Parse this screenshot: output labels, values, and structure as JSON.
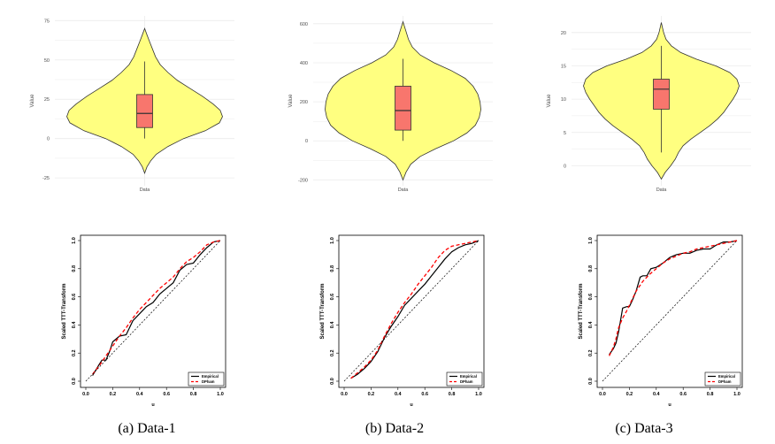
{
  "colors": {
    "violin_fill": "#FFFF80",
    "box_fill": "#F8766D",
    "grid": "#EBEBEB",
    "empirical": "#000000",
    "dpham": "#FF0000"
  },
  "chart_data": [
    {
      "type": "violin",
      "panel": "a",
      "caption": "(a) Data-1",
      "category": "Data",
      "ylabel": "Value",
      "ylim": [
        -30,
        78
      ],
      "yticks": [
        -25,
        0,
        25,
        50,
        75
      ],
      "ytick_labels": [
        "-25",
        "0",
        "25",
        "50",
        "75"
      ],
      "density_profile": [
        [
          -22,
          0.0
        ],
        [
          -18,
          0.03
        ],
        [
          -14,
          0.08
        ],
        [
          -10,
          0.15
        ],
        [
          -5,
          0.3
        ],
        [
          0,
          0.5
        ],
        [
          5,
          0.78
        ],
        [
          10,
          0.96
        ],
        [
          14,
          1.0
        ],
        [
          18,
          0.97
        ],
        [
          22,
          0.88
        ],
        [
          27,
          0.74
        ],
        [
          32,
          0.58
        ],
        [
          37,
          0.42
        ],
        [
          42,
          0.3
        ],
        [
          47,
          0.2
        ],
        [
          52,
          0.14
        ],
        [
          57,
          0.1
        ],
        [
          62,
          0.06
        ],
        [
          66,
          0.03
        ],
        [
          70,
          0.0
        ]
      ],
      "box": {
        "whisker_low": 0,
        "q1": 7,
        "median": 16,
        "q3": 28,
        "whisker_high": 49
      }
    },
    {
      "type": "violin",
      "panel": "b",
      "caption": "(b) Data-2",
      "category": "Data",
      "ylabel": "Value",
      "ylim": [
        -230,
        640
      ],
      "yticks": [
        -200,
        0,
        200,
        400,
        600
      ],
      "ytick_labels": [
        "-200",
        "0",
        "200",
        "400",
        "600"
      ],
      "density_profile": [
        [
          -200,
          0.0
        ],
        [
          -160,
          0.04
        ],
        [
          -120,
          0.1
        ],
        [
          -80,
          0.22
        ],
        [
          -40,
          0.42
        ],
        [
          0,
          0.65
        ],
        [
          40,
          0.82
        ],
        [
          80,
          0.93
        ],
        [
          120,
          0.98
        ],
        [
          160,
          1.0
        ],
        [
          200,
          0.99
        ],
        [
          240,
          0.96
        ],
        [
          280,
          0.9
        ],
        [
          320,
          0.8
        ],
        [
          360,
          0.62
        ],
        [
          400,
          0.4
        ],
        [
          440,
          0.22
        ],
        [
          480,
          0.12
        ],
        [
          520,
          0.07
        ],
        [
          560,
          0.04
        ],
        [
          610,
          0.0
        ]
      ],
      "box": {
        "whisker_low": 0,
        "q1": 55,
        "median": 155,
        "q3": 280,
        "whisker_high": 420
      }
    },
    {
      "type": "violin",
      "panel": "c",
      "caption": "(c) Data-3",
      "category": "Data",
      "ylabel": "Value",
      "ylim": [
        -3,
        22.5
      ],
      "yticks": [
        0,
        5,
        10,
        15,
        20
      ],
      "ytick_labels": [
        "0",
        "5",
        "10",
        "15",
        "20"
      ],
      "density_profile": [
        [
          -2,
          0.0
        ],
        [
          -1,
          0.05
        ],
        [
          0,
          0.12
        ],
        [
          1,
          0.18
        ],
        [
          2,
          0.22
        ],
        [
          3,
          0.28
        ],
        [
          4,
          0.38
        ],
        [
          5,
          0.5
        ],
        [
          6,
          0.62
        ],
        [
          7,
          0.72
        ],
        [
          8,
          0.8
        ],
        [
          9,
          0.86
        ],
        [
          10,
          0.92
        ],
        [
          11,
          0.97
        ],
        [
          12,
          1.0
        ],
        [
          13,
          0.97
        ],
        [
          14,
          0.88
        ],
        [
          15,
          0.7
        ],
        [
          16,
          0.45
        ],
        [
          17,
          0.25
        ],
        [
          18,
          0.13
        ],
        [
          19,
          0.06
        ],
        [
          20,
          0.03
        ],
        [
          21.5,
          0.0
        ]
      ],
      "box": {
        "whisker_low": 2,
        "q1": 8.5,
        "median": 11.5,
        "q3": 13,
        "whisker_high": 18
      }
    },
    {
      "type": "line",
      "panel": "a",
      "title": "",
      "xlabel": "u",
      "ylabel": "Scaled TTT-Transform",
      "xlim": [
        0,
        1
      ],
      "ylim": [
        0,
        1
      ],
      "xticks": [
        0,
        0.2,
        0.4,
        0.6,
        0.8,
        1
      ],
      "xtick_labels": [
        "0.0",
        "0.2",
        "0.4",
        "0.6",
        "0.8",
        "1.0"
      ],
      "yticks": [
        0,
        0.2,
        0.4,
        0.6,
        0.8,
        1
      ],
      "ytick_labels": [
        "0.0",
        "0.2",
        "0.4",
        "0.6",
        "0.8",
        "1.0"
      ],
      "legend": [
        "Empirical",
        "DPham"
      ],
      "legend_position": "bottom-right",
      "series": [
        {
          "name": "Empirical",
          "style": "solid",
          "x": [
            0.05,
            0.1,
            0.12,
            0.15,
            0.18,
            0.2,
            0.25,
            0.3,
            0.35,
            0.4,
            0.45,
            0.5,
            0.55,
            0.6,
            0.65,
            0.7,
            0.75,
            0.8,
            0.85,
            0.9,
            0.95,
            1.0
          ],
          "y": [
            0.04,
            0.12,
            0.15,
            0.15,
            0.22,
            0.28,
            0.32,
            0.33,
            0.43,
            0.48,
            0.53,
            0.56,
            0.62,
            0.66,
            0.7,
            0.79,
            0.83,
            0.84,
            0.9,
            0.95,
            0.99,
            1.0
          ]
        },
        {
          "name": "DPham",
          "style": "dashed",
          "x": [
            0.05,
            0.1,
            0.15,
            0.2,
            0.25,
            0.3,
            0.35,
            0.4,
            0.45,
            0.5,
            0.55,
            0.6,
            0.65,
            0.7,
            0.75,
            0.8,
            0.85,
            0.9,
            0.95,
            1.0
          ],
          "y": [
            0.05,
            0.11,
            0.18,
            0.25,
            0.32,
            0.38,
            0.45,
            0.51,
            0.56,
            0.61,
            0.66,
            0.7,
            0.74,
            0.8,
            0.85,
            0.88,
            0.92,
            0.97,
            0.99,
            1.0
          ]
        },
        {
          "name": "diagonal",
          "style": "dotted",
          "x": [
            0,
            1
          ],
          "y": [
            0,
            1
          ]
        }
      ]
    },
    {
      "type": "line",
      "panel": "b",
      "title": "",
      "xlabel": "u",
      "ylabel": "Scaled TTT-Transform",
      "xlim": [
        0,
        1
      ],
      "ylim": [
        0,
        1
      ],
      "xticks": [
        0,
        0.2,
        0.4,
        0.6,
        0.8,
        1
      ],
      "xtick_labels": [
        "0.0",
        "0.2",
        "0.4",
        "0.6",
        "0.8",
        "1.0"
      ],
      "yticks": [
        0,
        0.2,
        0.4,
        0.6,
        0.8,
        1
      ],
      "ytick_labels": [
        "0.0",
        "0.2",
        "0.4",
        "0.6",
        "0.8",
        "1.0"
      ],
      "legend": [
        "Empirical",
        "DPham"
      ],
      "legend_position": "bottom-right",
      "series": [
        {
          "name": "Empirical",
          "style": "solid",
          "x": [
            0.05,
            0.1,
            0.15,
            0.2,
            0.25,
            0.3,
            0.35,
            0.4,
            0.45,
            0.5,
            0.55,
            0.6,
            0.65,
            0.7,
            0.75,
            0.8,
            0.85,
            0.9,
            0.95,
            1.0
          ],
          "y": [
            0.02,
            0.05,
            0.09,
            0.14,
            0.21,
            0.31,
            0.39,
            0.46,
            0.54,
            0.59,
            0.64,
            0.69,
            0.75,
            0.81,
            0.87,
            0.92,
            0.95,
            0.97,
            0.98,
            1.0
          ]
        },
        {
          "name": "DPham",
          "style": "dashed",
          "x": [
            0.05,
            0.1,
            0.15,
            0.2,
            0.25,
            0.3,
            0.35,
            0.4,
            0.45,
            0.5,
            0.55,
            0.6,
            0.65,
            0.7,
            0.75,
            0.8,
            0.85,
            0.9,
            0.95,
            1.0
          ],
          "y": [
            0.02,
            0.06,
            0.1,
            0.15,
            0.22,
            0.32,
            0.41,
            0.49,
            0.56,
            0.62,
            0.69,
            0.75,
            0.81,
            0.88,
            0.93,
            0.96,
            0.97,
            0.98,
            0.99,
            1.0
          ]
        },
        {
          "name": "diagonal",
          "style": "dotted",
          "x": [
            0,
            1
          ],
          "y": [
            0,
            1
          ]
        }
      ]
    },
    {
      "type": "line",
      "panel": "c",
      "title": "",
      "xlabel": "u",
      "ylabel": "Scaled TTT-Transform",
      "xlim": [
        0,
        1
      ],
      "ylim": [
        0,
        1
      ],
      "xticks": [
        0,
        0.2,
        0.4,
        0.6,
        0.8,
        1
      ],
      "xtick_labels": [
        "0.0",
        "0.2",
        "0.4",
        "0.6",
        "0.8",
        "1.0"
      ],
      "yticks": [
        0,
        0.2,
        0.4,
        0.6,
        0.8,
        1
      ],
      "ytick_labels": [
        "0.0",
        "0.2",
        "0.4",
        "0.6",
        "0.8",
        "1.0"
      ],
      "legend": [
        "Empirical",
        "DPham"
      ],
      "legend_position": "bottom-right",
      "series": [
        {
          "name": "Empirical",
          "style": "solid",
          "x": [
            0.05,
            0.08,
            0.1,
            0.12,
            0.15,
            0.18,
            0.2,
            0.22,
            0.25,
            0.28,
            0.3,
            0.33,
            0.36,
            0.4,
            0.45,
            0.5,
            0.55,
            0.6,
            0.65,
            0.7,
            0.75,
            0.8,
            0.85,
            0.9,
            0.95,
            1.0
          ],
          "y": [
            0.19,
            0.23,
            0.27,
            0.35,
            0.52,
            0.53,
            0.53,
            0.57,
            0.64,
            0.74,
            0.75,
            0.75,
            0.8,
            0.81,
            0.84,
            0.88,
            0.9,
            0.91,
            0.91,
            0.93,
            0.94,
            0.94,
            0.97,
            0.99,
            0.99,
            1.0
          ]
        },
        {
          "name": "DPham",
          "style": "dashed",
          "x": [
            0.05,
            0.08,
            0.1,
            0.12,
            0.15,
            0.18,
            0.2,
            0.22,
            0.25,
            0.3,
            0.35,
            0.4,
            0.45,
            0.5,
            0.55,
            0.6,
            0.65,
            0.7,
            0.75,
            0.8,
            0.85,
            0.9,
            0.95,
            1.0
          ],
          "y": [
            0.18,
            0.24,
            0.3,
            0.38,
            0.45,
            0.5,
            0.54,
            0.58,
            0.64,
            0.71,
            0.76,
            0.8,
            0.84,
            0.87,
            0.89,
            0.91,
            0.92,
            0.94,
            0.95,
            0.96,
            0.97,
            0.98,
            0.99,
            1.0
          ]
        },
        {
          "name": "diagonal",
          "style": "dotted",
          "x": [
            0,
            1
          ],
          "y": [
            0,
            1
          ]
        }
      ]
    }
  ]
}
